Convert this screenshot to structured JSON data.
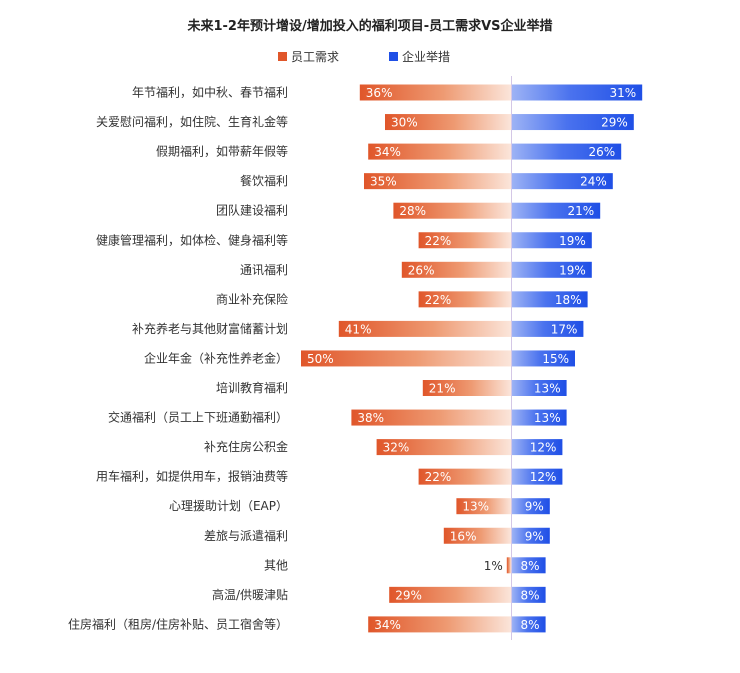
{
  "chart_data": {
    "type": "bar",
    "orientation": "horizontal-diverging",
    "title": "未来1-2年预计增设/增加投入的福利项目-员工需求VS企业举措",
    "series": [
      {
        "name": "员工需求",
        "color": "#E0562A",
        "values": [
          36,
          30,
          34,
          35,
          28,
          22,
          26,
          22,
          41,
          50,
          21,
          38,
          32,
          22,
          13,
          16,
          1,
          29,
          34
        ]
      },
      {
        "name": "企业举措",
        "color": "#1F4FE6",
        "values": [
          31,
          29,
          26,
          24,
          21,
          19,
          19,
          18,
          17,
          15,
          13,
          13,
          12,
          12,
          9,
          9,
          8,
          8,
          8
        ]
      }
    ],
    "categories": [
      "年节福利，如中秋、春节福利",
      "关爱慰问福利，如住院、生育礼金等",
      "假期福利，如带薪年假等",
      "餐饮福利",
      "团队建设福利",
      "健康管理福利，如体检、健身福利等",
      "通讯福利",
      "商业补充保险",
      "补充养老与其他财富储蓄计划",
      "企业年金（补充性养老金）",
      "培训教育福利",
      "交通福利（员工上下班通勤福利）",
      "补充住房公积金",
      "用车福利，如提供用车，报销油费等",
      "心理援助计划（EAP）",
      "差旅与派遣福利",
      "其他",
      "高温/供暖津贴",
      "住房福利（租房/住房补贴、员工宿舍等）"
    ],
    "value_suffix": "%",
    "legend_position": "top-center",
    "xlim": [
      0,
      50
    ]
  }
}
